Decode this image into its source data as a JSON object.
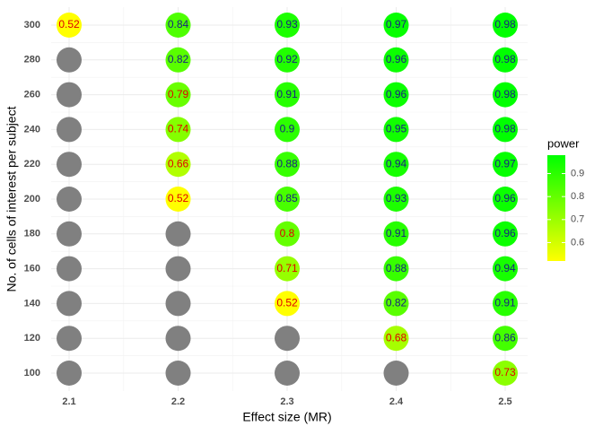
{
  "chart_data": {
    "type": "dot-grid",
    "x_label": "Effect size (MR)",
    "y_label": "No. of cells of interest per subject",
    "x": [
      2.1,
      2.2,
      2.3,
      2.4,
      2.5
    ],
    "y": [
      100,
      120,
      140,
      160,
      180,
      200,
      220,
      240,
      260,
      280,
      300
    ],
    "values": [
      [
        null,
        null,
        null,
        null,
        0.73
      ],
      [
        null,
        null,
        null,
        0.68,
        0.86
      ],
      [
        null,
        null,
        0.52,
        0.82,
        0.91
      ],
      [
        null,
        null,
        0.71,
        0.88,
        0.94
      ],
      [
        null,
        null,
        0.8,
        0.91,
        0.96
      ],
      [
        null,
        0.52,
        0.85,
        0.93,
        0.96
      ],
      [
        null,
        0.66,
        0.88,
        0.94,
        0.97
      ],
      [
        null,
        0.74,
        0.9,
        0.95,
        0.98
      ],
      [
        null,
        0.79,
        0.91,
        0.96,
        0.98
      ],
      [
        null,
        0.82,
        0.92,
        0.96,
        0.98
      ],
      [
        0.52,
        0.84,
        0.93,
        0.97,
        0.98
      ]
    ],
    "na_color": "#808080",
    "color_low": "#ffff00",
    "color_high": "#00ff00",
    "label_threshold": 0.8,
    "label_color_low": "#e00000",
    "label_color_high": "#1a237e",
    "legend": {
      "title": "power",
      "limits": [
        0.52,
        0.98
      ],
      "ticks": [
        0.6,
        0.7,
        0.8,
        0.9
      ]
    },
    "grid": true
  }
}
